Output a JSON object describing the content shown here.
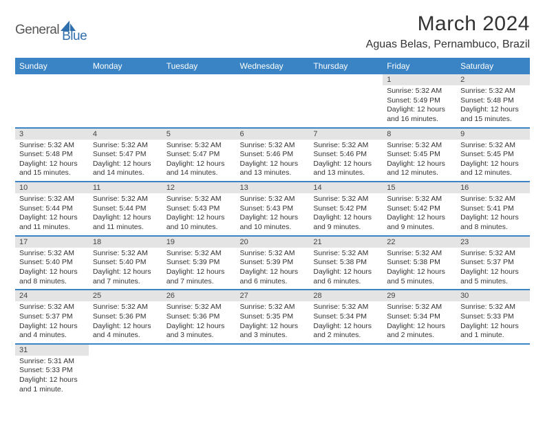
{
  "logo": {
    "part1": "General",
    "part2": "Blue"
  },
  "title": "March 2024",
  "location": "Aguas Belas, Pernambuco, Brazil",
  "colors": {
    "header_bg": "#3a84c5",
    "header_text": "#ffffff",
    "daynum_bg": "#e4e4e4",
    "row_border": "#3a84c5",
    "logo_accent": "#2f6fae"
  },
  "weekdays": [
    "Sunday",
    "Monday",
    "Tuesday",
    "Wednesday",
    "Thursday",
    "Friday",
    "Saturday"
  ],
  "weeks": [
    [
      null,
      null,
      null,
      null,
      null,
      {
        "n": "1",
        "sunrise": "5:32 AM",
        "sunset": "5:49 PM",
        "daylight": "12 hours and 16 minutes."
      },
      {
        "n": "2",
        "sunrise": "5:32 AM",
        "sunset": "5:48 PM",
        "daylight": "12 hours and 15 minutes."
      }
    ],
    [
      {
        "n": "3",
        "sunrise": "5:32 AM",
        "sunset": "5:48 PM",
        "daylight": "12 hours and 15 minutes."
      },
      {
        "n": "4",
        "sunrise": "5:32 AM",
        "sunset": "5:47 PM",
        "daylight": "12 hours and 14 minutes."
      },
      {
        "n": "5",
        "sunrise": "5:32 AM",
        "sunset": "5:47 PM",
        "daylight": "12 hours and 14 minutes."
      },
      {
        "n": "6",
        "sunrise": "5:32 AM",
        "sunset": "5:46 PM",
        "daylight": "12 hours and 13 minutes."
      },
      {
        "n": "7",
        "sunrise": "5:32 AM",
        "sunset": "5:46 PM",
        "daylight": "12 hours and 13 minutes."
      },
      {
        "n": "8",
        "sunrise": "5:32 AM",
        "sunset": "5:45 PM",
        "daylight": "12 hours and 12 minutes."
      },
      {
        "n": "9",
        "sunrise": "5:32 AM",
        "sunset": "5:45 PM",
        "daylight": "12 hours and 12 minutes."
      }
    ],
    [
      {
        "n": "10",
        "sunrise": "5:32 AM",
        "sunset": "5:44 PM",
        "daylight": "12 hours and 11 minutes."
      },
      {
        "n": "11",
        "sunrise": "5:32 AM",
        "sunset": "5:44 PM",
        "daylight": "12 hours and 11 minutes."
      },
      {
        "n": "12",
        "sunrise": "5:32 AM",
        "sunset": "5:43 PM",
        "daylight": "12 hours and 10 minutes."
      },
      {
        "n": "13",
        "sunrise": "5:32 AM",
        "sunset": "5:43 PM",
        "daylight": "12 hours and 10 minutes."
      },
      {
        "n": "14",
        "sunrise": "5:32 AM",
        "sunset": "5:42 PM",
        "daylight": "12 hours and 9 minutes."
      },
      {
        "n": "15",
        "sunrise": "5:32 AM",
        "sunset": "5:42 PM",
        "daylight": "12 hours and 9 minutes."
      },
      {
        "n": "16",
        "sunrise": "5:32 AM",
        "sunset": "5:41 PM",
        "daylight": "12 hours and 8 minutes."
      }
    ],
    [
      {
        "n": "17",
        "sunrise": "5:32 AM",
        "sunset": "5:40 PM",
        "daylight": "12 hours and 8 minutes."
      },
      {
        "n": "18",
        "sunrise": "5:32 AM",
        "sunset": "5:40 PM",
        "daylight": "12 hours and 7 minutes."
      },
      {
        "n": "19",
        "sunrise": "5:32 AM",
        "sunset": "5:39 PM",
        "daylight": "12 hours and 7 minutes."
      },
      {
        "n": "20",
        "sunrise": "5:32 AM",
        "sunset": "5:39 PM",
        "daylight": "12 hours and 6 minutes."
      },
      {
        "n": "21",
        "sunrise": "5:32 AM",
        "sunset": "5:38 PM",
        "daylight": "12 hours and 6 minutes."
      },
      {
        "n": "22",
        "sunrise": "5:32 AM",
        "sunset": "5:38 PM",
        "daylight": "12 hours and 5 minutes."
      },
      {
        "n": "23",
        "sunrise": "5:32 AM",
        "sunset": "5:37 PM",
        "daylight": "12 hours and 5 minutes."
      }
    ],
    [
      {
        "n": "24",
        "sunrise": "5:32 AM",
        "sunset": "5:37 PM",
        "daylight": "12 hours and 4 minutes."
      },
      {
        "n": "25",
        "sunrise": "5:32 AM",
        "sunset": "5:36 PM",
        "daylight": "12 hours and 4 minutes."
      },
      {
        "n": "26",
        "sunrise": "5:32 AM",
        "sunset": "5:36 PM",
        "daylight": "12 hours and 3 minutes."
      },
      {
        "n": "27",
        "sunrise": "5:32 AM",
        "sunset": "5:35 PM",
        "daylight": "12 hours and 3 minutes."
      },
      {
        "n": "28",
        "sunrise": "5:32 AM",
        "sunset": "5:34 PM",
        "daylight": "12 hours and 2 minutes."
      },
      {
        "n": "29",
        "sunrise": "5:32 AM",
        "sunset": "5:34 PM",
        "daylight": "12 hours and 2 minutes."
      },
      {
        "n": "30",
        "sunrise": "5:32 AM",
        "sunset": "5:33 PM",
        "daylight": "12 hours and 1 minute."
      }
    ],
    [
      {
        "n": "31",
        "sunrise": "5:31 AM",
        "sunset": "5:33 PM",
        "daylight": "12 hours and 1 minute."
      },
      null,
      null,
      null,
      null,
      null,
      null
    ]
  ]
}
